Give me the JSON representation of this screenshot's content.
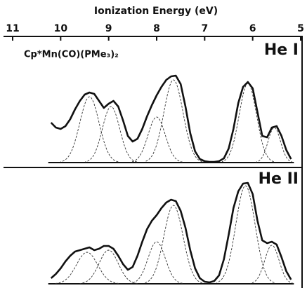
{
  "chart_data": [
    {
      "type": "line",
      "xlabel": "Ionization Energy (eV)",
      "annotation": "Cp*Mn(CO)(PMe₃)₂",
      "panel_label": "He I",
      "xlim": [
        11,
        5
      ],
      "xticks": [
        11,
        10,
        9,
        8,
        7,
        6,
        5
      ],
      "ylim": [
        0,
        130
      ],
      "x": [
        10.2,
        10.1,
        10.0,
        9.9,
        9.8,
        9.7,
        9.6,
        9.5,
        9.4,
        9.3,
        9.2,
        9.1,
        9.0,
        8.9,
        8.8,
        8.7,
        8.6,
        8.5,
        8.4,
        8.3,
        8.2,
        8.1,
        8.0,
        7.9,
        7.8,
        7.7,
        7.6,
        7.5,
        7.4,
        7.3,
        7.2,
        7.1,
        7.0,
        6.9,
        6.8,
        6.7,
        6.6,
        6.5,
        6.4,
        6.3,
        6.2,
        6.1,
        6.0,
        5.9,
        5.8,
        5.7,
        5.6,
        5.5,
        5.4,
        5.3,
        5.2
      ],
      "series": [
        {
          "color": "#111111",
          "values": [
            57,
            50,
            48,
            52,
            62,
            76,
            88,
            97,
            100,
            98,
            88,
            78,
            84,
            88,
            80,
            60,
            38,
            30,
            34,
            48,
            66,
            82,
            96,
            108,
            118,
            123,
            124,
            112,
            80,
            42,
            16,
            5,
            2,
            1,
            1,
            2,
            6,
            20,
            48,
            85,
            108,
            115,
            106,
            72,
            38,
            36,
            50,
            52,
            38,
            18,
            5
          ]
        }
      ],
      "bands": [
        {
          "center": 9.4,
          "height": 94,
          "width": 0.2
        },
        {
          "center": 8.95,
          "height": 80,
          "width": 0.18
        },
        {
          "center": 8.0,
          "height": 65,
          "width": 0.18
        },
        {
          "center": 7.65,
          "height": 118,
          "width": 0.2
        },
        {
          "center": 6.1,
          "height": 113,
          "width": 0.18
        },
        {
          "center": 5.55,
          "height": 50,
          "width": 0.13
        }
      ]
    },
    {
      "type": "line",
      "panel_label": "He II",
      "xlim": [
        11,
        5
      ],
      "ylim": [
        0,
        150
      ],
      "x": [
        10.2,
        10.1,
        10.0,
        9.9,
        9.8,
        9.7,
        9.6,
        9.5,
        9.4,
        9.3,
        9.2,
        9.1,
        9.0,
        8.9,
        8.8,
        8.7,
        8.6,
        8.5,
        8.4,
        8.3,
        8.2,
        8.1,
        8.0,
        7.9,
        7.8,
        7.7,
        7.6,
        7.5,
        7.4,
        7.3,
        7.2,
        7.1,
        7.0,
        6.9,
        6.8,
        6.7,
        6.6,
        6.5,
        6.4,
        6.3,
        6.2,
        6.1,
        6.0,
        5.9,
        5.8,
        5.7,
        5.6,
        5.5,
        5.4,
        5.3,
        5.2
      ],
      "series": [
        {
          "color": "#111111",
          "values": [
            8,
            14,
            22,
            32,
            40,
            46,
            48,
            50,
            52,
            48,
            50,
            54,
            54,
            50,
            40,
            28,
            20,
            24,
            40,
            60,
            78,
            90,
            98,
            108,
            116,
            120,
            118,
            104,
            80,
            48,
            22,
            8,
            3,
            2,
            4,
            12,
            35,
            70,
            108,
            132,
            143,
            144,
            128,
            90,
            62,
            58,
            60,
            56,
            38,
            18,
            6
          ]
        }
      ],
      "bands": [
        {
          "center": 9.45,
          "height": 45,
          "width": 0.22
        },
        {
          "center": 9.0,
          "height": 48,
          "width": 0.2
        },
        {
          "center": 8.0,
          "height": 60,
          "width": 0.18
        },
        {
          "center": 7.65,
          "height": 112,
          "width": 0.2
        },
        {
          "center": 6.15,
          "height": 140,
          "width": 0.2
        },
        {
          "center": 5.6,
          "height": 55,
          "width": 0.15
        }
      ]
    }
  ]
}
